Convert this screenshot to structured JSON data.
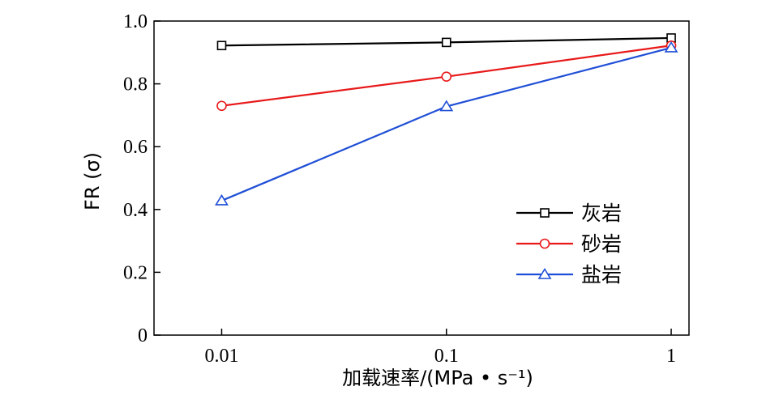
{
  "chart_data": {
    "type": "line",
    "x_scale": "log",
    "x": [
      0.01,
      0.1,
      1
    ],
    "x_tick_labels": [
      "0.01",
      "0.1",
      "1"
    ],
    "xlim": [
      0.005,
      1.2
    ],
    "ylim": [
      0,
      1.0
    ],
    "y_ticks": [
      0,
      0.2,
      0.4,
      0.6,
      0.8,
      1.0
    ],
    "y_tick_labels": [
      "0",
      "0.2",
      "0.4",
      "0.6",
      "0.8",
      "1.0"
    ],
    "xlabel": "加载速率/(MPa • s⁻¹)",
    "ylabel": "FR (σ)",
    "grid": false,
    "legend_position": "bottom-right",
    "series": [
      {
        "name": "灰岩",
        "values": [
          0.922,
          0.932,
          0.946
        ],
        "color": "#000000",
        "marker": "square"
      },
      {
        "name": "砂岩",
        "values": [
          0.73,
          0.823,
          0.922
        ],
        "color": "#e8191a",
        "marker": "circle"
      },
      {
        "name": "盐岩",
        "values": [
          0.428,
          0.728,
          0.915
        ],
        "color": "#1f4fd6",
        "marker": "triangle"
      }
    ]
  }
}
